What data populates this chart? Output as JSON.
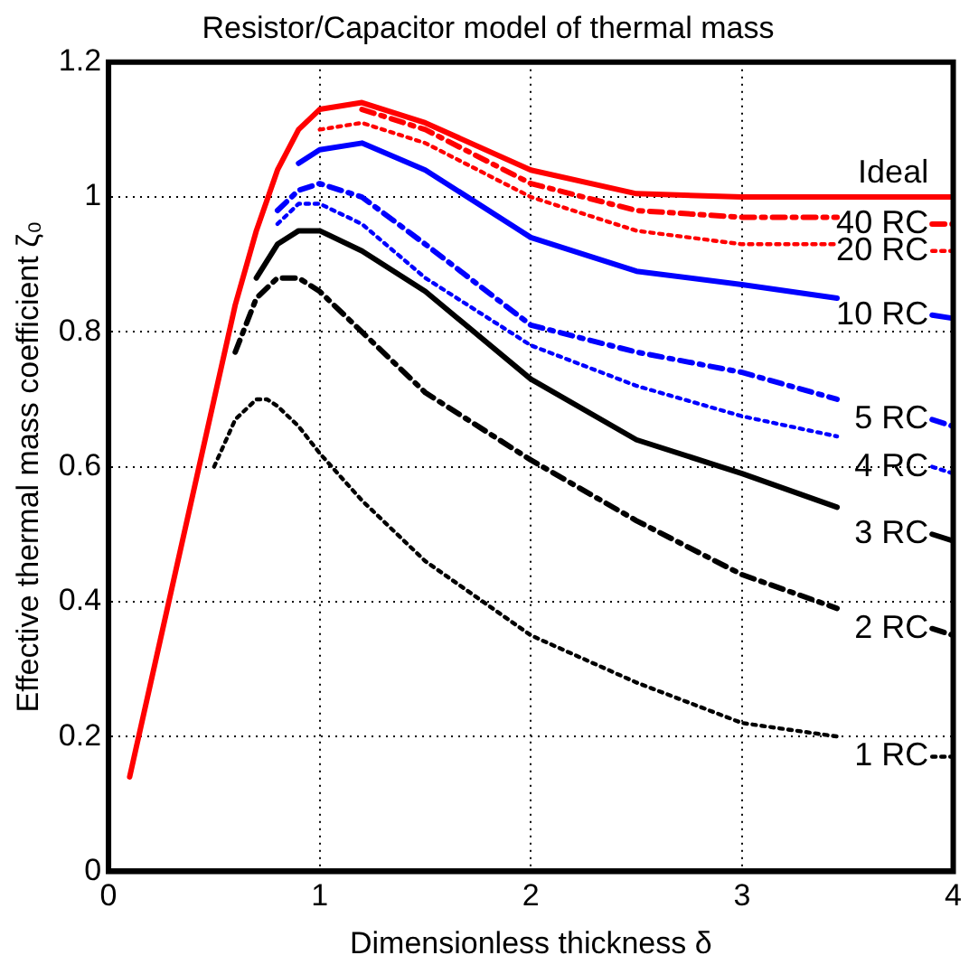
{
  "chart_data": {
    "type": "line",
    "title": "Resistor/Capacitor model of thermal mass",
    "xlabel": "Dimensionless thickness δ",
    "ylabel": "Effective thermal mass coefficient ζ₀",
    "xlim": [
      0,
      4
    ],
    "ylim": [
      0,
      1.2
    ],
    "xticks": [
      0,
      1,
      2,
      3,
      4
    ],
    "yticks": [
      0,
      0.2,
      0.4,
      0.6,
      0.8,
      1,
      1.2
    ],
    "grid": true,
    "legend": false,
    "marker": "none",
    "series": [
      {
        "name": "1 RC",
        "color": "#000000",
        "line_style": "dotted",
        "x": [
          0.5,
          0.6,
          0.7,
          0.75,
          0.8,
          0.9,
          1,
          1.2,
          1.5,
          2,
          2.5,
          3,
          3.45,
          3.7,
          3.9,
          4
        ],
        "values": [
          0.6,
          0.67,
          0.7,
          0.7,
          0.69,
          0.66,
          0.62,
          0.55,
          0.46,
          0.35,
          0.28,
          0.22,
          0.2,
          null,
          0.17,
          0.17
        ]
      },
      {
        "name": "2 RC",
        "color": "#000000",
        "line_style": "dashed",
        "x": [
          0.6,
          0.7,
          0.8,
          0.9,
          1,
          1.2,
          1.5,
          2,
          2.5,
          3,
          3.45,
          3.7,
          3.9,
          4
        ],
        "values": [
          0.77,
          0.85,
          0.88,
          0.88,
          0.86,
          0.8,
          0.71,
          0.61,
          0.52,
          0.44,
          0.39,
          null,
          0.36,
          0.35
        ]
      },
      {
        "name": "3 RC",
        "color": "#000000",
        "line_style": "solid",
        "x": [
          0.7,
          0.8,
          0.9,
          1,
          1.2,
          1.5,
          2,
          2.5,
          3,
          3.45,
          3.7,
          3.9,
          4
        ],
        "values": [
          0.88,
          0.93,
          0.95,
          0.95,
          0.92,
          0.86,
          0.73,
          0.64,
          0.59,
          0.54,
          null,
          0.5,
          0.49
        ]
      },
      {
        "name": "4 RC",
        "color": "#0000ff",
        "line_style": "dotted",
        "x": [
          0.8,
          0.9,
          1,
          1.2,
          1.5,
          2,
          2.5,
          3,
          3.45,
          3.7,
          3.9,
          4
        ],
        "values": [
          0.96,
          0.99,
          0.99,
          0.96,
          0.88,
          0.78,
          0.72,
          0.675,
          0.645,
          null,
          0.6,
          0.59
        ]
      },
      {
        "name": "5 RC",
        "color": "#0000ff",
        "line_style": "dashed",
        "x": [
          0.8,
          0.9,
          1,
          1.2,
          1.5,
          2,
          2.5,
          3,
          3.45,
          3.7,
          3.9,
          4
        ],
        "values": [
          0.98,
          1.01,
          1.02,
          1,
          0.93,
          0.81,
          0.77,
          0.74,
          0.7,
          null,
          0.67,
          0.66
        ]
      },
      {
        "name": "10 RC",
        "color": "#0000ff",
        "line_style": "solid",
        "x": [
          0.9,
          1,
          1.2,
          1.5,
          2,
          2.5,
          3,
          3.45,
          3.7,
          3.9,
          4
        ],
        "values": [
          1.05,
          1.07,
          1.08,
          1.04,
          0.94,
          0.89,
          0.87,
          0.85,
          null,
          0.825,
          0.82
        ]
      },
      {
        "name": "20 RC",
        "color": "#ff0000",
        "line_style": "dotted",
        "x": [
          1,
          1.2,
          1.5,
          2,
          2.5,
          3,
          3.45,
          3.7,
          3.9,
          4
        ],
        "values": [
          1.1,
          1.11,
          1.08,
          1,
          0.95,
          0.93,
          0.93,
          null,
          0.92,
          0.92
        ]
      },
      {
        "name": "40 RC",
        "color": "#ff0000",
        "line_style": "dashed",
        "x": [
          1.2,
          1.5,
          2,
          2.5,
          3,
          3.45,
          3.7,
          3.9,
          4
        ],
        "values": [
          1.13,
          1.1,
          1.02,
          0.98,
          0.97,
          0.97,
          null,
          0.96,
          0.96
        ]
      },
      {
        "name": "Ideal",
        "color": "#ff0000",
        "line_style": "solid",
        "x": [
          0.1,
          0.3,
          0.5,
          0.6,
          0.7,
          0.8,
          0.9,
          1,
          1.2,
          1.5,
          2,
          2.5,
          3,
          3.9,
          4
        ],
        "values": [
          0.14,
          0.42,
          0.7,
          0.84,
          0.95,
          1.04,
          1.1,
          1.13,
          1.14,
          1.11,
          1.04,
          1.005,
          1,
          1,
          1
        ]
      }
    ]
  }
}
